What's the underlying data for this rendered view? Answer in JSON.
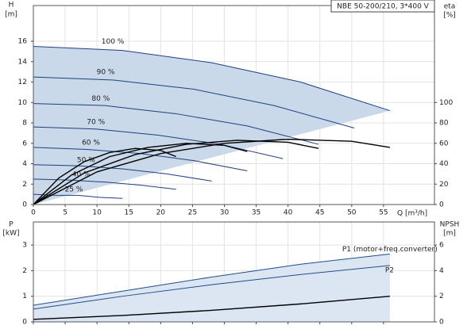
{
  "chart_data": [
    {
      "type": "line",
      "title": "NBE 50-200/210, 3*400 V",
      "x_label": "Q [m³/h]",
      "y_label": "H",
      "y_unit": "[m]",
      "y2_label": "eta",
      "y2_unit": "[%]",
      "xlim": [
        0,
        63
      ],
      "xticks": [
        0,
        5,
        10,
        15,
        20,
        25,
        30,
        35,
        40,
        45,
        50,
        55
      ],
      "ylim": [
        0,
        19.5
      ],
      "yticks": [
        0,
        2,
        4,
        6,
        8,
        10,
        12,
        14,
        16
      ],
      "y2lim": [
        0,
        195
      ],
      "y2ticks": [
        0,
        20,
        40,
        60,
        80,
        100
      ],
      "grid": true,
      "fill_color": "#c9d9ea",
      "series": [
        {
          "name": "100 %",
          "color": "#1f3f7f",
          "x": [
            0,
            14,
            28,
            42,
            56
          ],
          "values": [
            15.5,
            15.1,
            13.9,
            12.0,
            9.2
          ]
        },
        {
          "name": "90 %",
          "color": "#1f3f7f",
          "x": [
            0,
            12.6,
            25.2,
            37.8,
            50.4
          ],
          "values": [
            12.5,
            12.2,
            11.3,
            9.7,
            7.5
          ]
        },
        {
          "name": "80 %",
          "color": "#1f3f7f",
          "x": [
            0,
            11.2,
            22.4,
            33.6,
            44.8
          ],
          "values": [
            9.9,
            9.7,
            8.9,
            7.7,
            5.9
          ]
        },
        {
          "name": "70 %",
          "color": "#1f3f7f",
          "x": [
            0,
            9.8,
            19.6,
            29.4,
            39.2
          ],
          "values": [
            7.6,
            7.4,
            6.8,
            5.9,
            4.5
          ]
        },
        {
          "name": "60 %",
          "color": "#1f3f7f",
          "x": [
            0,
            8.4,
            16.8,
            25.2,
            33.6
          ],
          "values": [
            5.6,
            5.4,
            5.0,
            4.3,
            3.3
          ]
        },
        {
          "name": "50 %",
          "color": "#1f3f7f",
          "x": [
            0,
            7,
            14,
            21,
            28
          ],
          "values": [
            3.9,
            3.8,
            3.5,
            3.0,
            2.3
          ]
        },
        {
          "name": "40 %",
          "color": "#1f3f7f",
          "x": [
            0,
            5.6,
            11.2,
            16.8,
            22.4
          ],
          "values": [
            2.5,
            2.4,
            2.2,
            1.9,
            1.5
          ]
        },
        {
          "name": "25 %",
          "color": "#1f3f7f",
          "x": [
            0,
            3.5,
            7,
            10.5,
            14
          ],
          "values": [
            1.0,
            0.9,
            0.9,
            0.7,
            0.6
          ]
        },
        {
          "color": "#000000",
          "axis": "y2",
          "x": [
            0,
            10,
            20,
            30,
            40,
            50,
            56
          ],
          "values": [
            0,
            32,
            50,
            60,
            64,
            62,
            56
          ]
        },
        {
          "color": "#000000",
          "axis": "y2",
          "x": [
            0,
            8,
            16,
            24,
            32,
            40,
            44.8
          ],
          "values": [
            0,
            31,
            49,
            59,
            63,
            61,
            55
          ]
        },
        {
          "color": "#000000",
          "axis": "y2",
          "x": [
            0,
            6,
            12,
            18,
            24,
            30,
            33.6
          ],
          "values": [
            0,
            29,
            47,
            56,
            60,
            58,
            52
          ]
        },
        {
          "color": "#000000",
          "axis": "y2",
          "x": [
            0,
            4,
            8,
            12,
            16,
            20,
            22.4
          ],
          "values": [
            0,
            26,
            42,
            51,
            55,
            53,
            47
          ]
        }
      ]
    },
    {
      "type": "line",
      "y_label": "P",
      "y_unit": "[kW]",
      "y2_label": "NPSH",
      "y2_unit": "[m]",
      "xlim": [
        0,
        63
      ],
      "ylim": [
        0,
        3.9
      ],
      "yticks": [
        0,
        1,
        2,
        3
      ],
      "y2lim": [
        0,
        7.8
      ],
      "y2ticks": [
        0,
        2,
        4,
        6
      ],
      "grid": true,
      "fill_color": "#dbe6f2",
      "series": [
        {
          "name": "P1 (motor+freq.converter)",
          "color": "#1f4e8c",
          "x": [
            0,
            14,
            28,
            42,
            56
          ],
          "values": [
            0.65,
            1.2,
            1.75,
            2.25,
            2.65
          ]
        },
        {
          "name": "P2",
          "color": "#1f4e8c",
          "x": [
            0,
            14,
            28,
            42,
            56
          ],
          "values": [
            0.5,
            1.0,
            1.45,
            1.85,
            2.2
          ]
        },
        {
          "color": "#000000",
          "axis": "y2",
          "x": [
            0,
            14,
            28,
            42,
            56
          ],
          "values": [
            0.2,
            0.5,
            0.9,
            1.4,
            2.0
          ]
        }
      ]
    }
  ]
}
